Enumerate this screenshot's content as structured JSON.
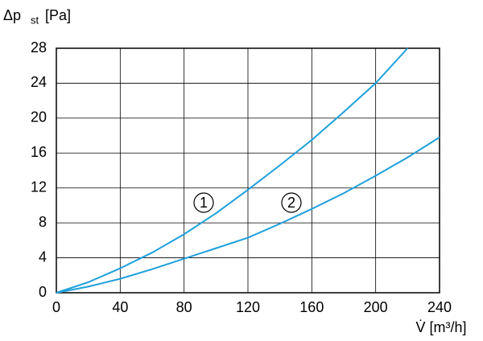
{
  "chart_data": {
    "type": "line",
    "y_label": [
      "Δp",
      "st",
      "[Pa]"
    ],
    "x_label": "V̇ [m³/h]",
    "xlim": [
      0,
      240
    ],
    "xticks": [
      0,
      40,
      80,
      120,
      160,
      200,
      240
    ],
    "ylim": [
      0,
      28
    ],
    "yticks": [
      0,
      4,
      8,
      12,
      16,
      20,
      24,
      28
    ],
    "grid": true,
    "series": [
      {
        "name": "1",
        "color": "#1ea0dc",
        "x": [
          0,
          20,
          40,
          60,
          80,
          100,
          120,
          140,
          160,
          180,
          200,
          220
        ],
        "values": [
          0,
          1.2,
          2.8,
          4.6,
          6.7,
          9.1,
          11.8,
          14.6,
          17.5,
          20.7,
          24,
          28
        ]
      },
      {
        "name": "2",
        "color": "#1ea0dc",
        "x": [
          0,
          20,
          40,
          60,
          80,
          100,
          120,
          140,
          160,
          180,
          200,
          220,
          240
        ],
        "values": [
          0,
          0.7,
          1.6,
          2.7,
          3.9,
          5.1,
          6.3,
          7.9,
          9.6,
          11.4,
          13.4,
          15.5,
          17.8
        ]
      }
    ]
  }
}
